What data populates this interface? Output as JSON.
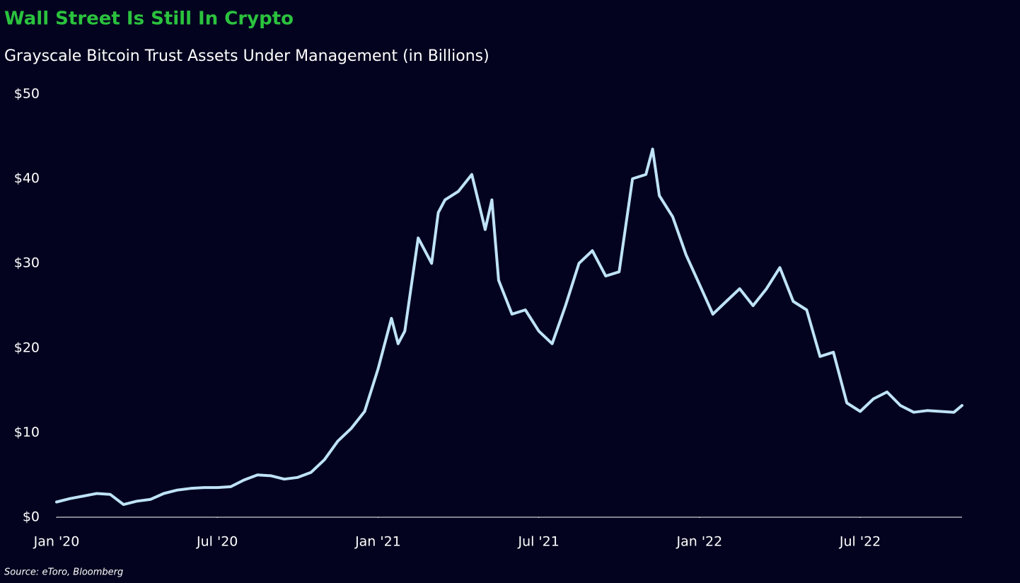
{
  "chart_data": {
    "type": "line",
    "title": "Wall Street Is Still In Crypto",
    "subtitle": "Grayscale Bitcoin Trust Assets Under Management (in Billions)",
    "source": "Source: eToro, Bloomberg",
    "x": [
      0,
      0.5,
      1,
      1.5,
      2,
      2.5,
      3,
      3.5,
      4,
      4.5,
      5,
      5.5,
      6,
      6.5,
      7,
      7.5,
      8,
      8.5,
      9,
      9.5,
      10,
      10.5,
      11,
      11.5,
      12,
      12.5,
      12.75,
      13,
      13.5,
      14,
      14.25,
      14.5,
      15,
      15.5,
      16,
      16.25,
      16.5,
      17,
      17.5,
      18,
      18.5,
      19,
      19.5,
      20,
      20.5,
      21,
      21.5,
      22,
      22.25,
      22.5,
      23,
      23.5,
      24,
      24.5,
      25,
      25.5,
      26,
      26.5,
      27,
      27.5,
      28,
      28.5,
      29,
      29.5,
      30,
      30.5,
      31,
      31.5,
      32,
      32.5,
      33,
      33.5,
      33.8
    ],
    "series": [
      {
        "name": "Grayscale Bitcoin Trust AUM",
        "color": "#bfe3f7",
        "values": [
          1.8,
          2.2,
          2.5,
          2.8,
          2.7,
          1.5,
          1.9,
          2.1,
          2.8,
          3.2,
          3.4,
          3.5,
          3.5,
          3.6,
          4.4,
          5.0,
          4.9,
          4.5,
          4.7,
          5.3,
          6.8,
          9.0,
          10.5,
          12.5,
          17.5,
          23.5,
          20.5,
          22,
          33,
          30,
          36,
          37.5,
          38.5,
          40.5,
          34,
          37.5,
          28,
          24,
          24.5,
          22,
          20.5,
          25,
          30,
          31.5,
          28.5,
          29,
          40,
          40.5,
          43.5,
          38,
          35.5,
          31,
          27.5,
          24,
          25.5,
          27,
          25,
          27,
          29.5,
          25.5,
          24.5,
          19,
          19.5,
          13.5,
          12.5,
          14,
          14.8,
          13.2,
          12.4,
          12.6,
          12.5,
          12.4,
          13.2
        ]
      }
    ],
    "xlim": [
      0,
      33.8
    ],
    "xticks": [
      {
        "value": 0,
        "label": "Jan '20"
      },
      {
        "value": 6,
        "label": "Jul '20"
      },
      {
        "value": 12,
        "label": "Jan '21"
      },
      {
        "value": 18,
        "label": "Jul '21"
      },
      {
        "value": 24,
        "label": "Jan '22"
      },
      {
        "value": 30,
        "label": "Jul '22"
      }
    ],
    "ylim": [
      0,
      50
    ],
    "yticks": [
      {
        "value": 0,
        "label": "$0"
      },
      {
        "value": 10,
        "label": "$10"
      },
      {
        "value": 20,
        "label": "$20"
      },
      {
        "value": 30,
        "label": "$30"
      },
      {
        "value": 40,
        "label": "$40"
      },
      {
        "value": 50,
        "label": "$50"
      }
    ],
    "grid": false
  }
}
